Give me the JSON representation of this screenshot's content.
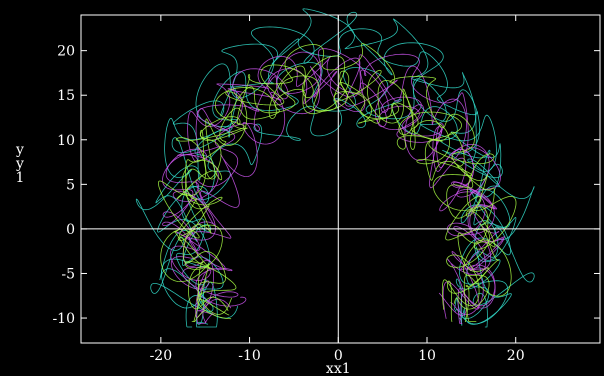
{
  "chart_data": {
    "type": "line",
    "title": "",
    "xlabel": "xx1",
    "ylabel": "yy1",
    "xlim": [
      -29,
      29.5
    ],
    "ylim": [
      -12.8,
      24
    ],
    "xticks": [
      -20,
      -10,
      0,
      10,
      20
    ],
    "yticks": [
      -10,
      -5,
      0,
      5,
      10,
      15,
      20
    ],
    "grid": false,
    "zero_lines": true,
    "legend": "none",
    "background": "#000000",
    "series": [
      {
        "color": "#33ddcc",
        "style": "tangled trajectories",
        "envelope": {
          "outer_radius": 22.2,
          "inner_radius": 12.0,
          "center": [
            0,
            0
          ],
          "endpoints": [
            [
              -13.9,
              -11
            ],
            [
              13.9,
              -11
            ]
          ]
        }
      },
      {
        "color": "#cc55ee",
        "style": "tangled trajectories",
        "envelope": {
          "outer_radius": 21.5,
          "inner_radius": 13.0,
          "center": [
            0,
            0
          ],
          "endpoints": [
            [
              -14.2,
              -10.6
            ],
            [
              14.2,
              -10.6
            ]
          ]
        }
      },
      {
        "color": "#aaff44",
        "style": "tangled trajectories",
        "envelope": {
          "outer_radius": 21.0,
          "inner_radius": 14.0,
          "center": [
            0,
            0
          ],
          "endpoints": [
            [
              -14.5,
              -10.4
            ],
            [
              14.5,
              -10.4
            ]
          ]
        }
      }
    ]
  }
}
